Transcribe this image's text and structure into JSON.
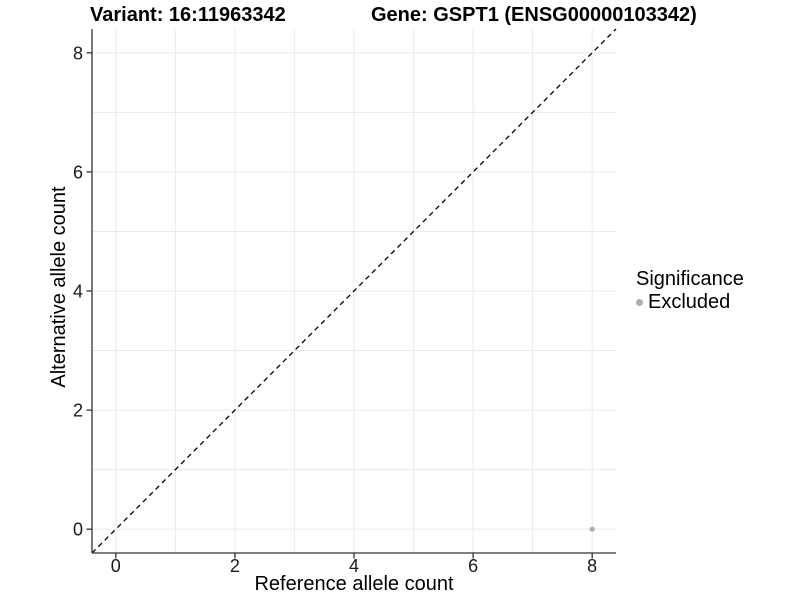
{
  "chart_data": {
    "type": "scatter",
    "title_left": "Variant: 16:11963342",
    "title_right": "Gene: GSPT1 (ENSG00000103342)",
    "xlabel": "Reference allele count",
    "ylabel": "Alternative allele count",
    "xlim": [
      -0.4,
      8.4
    ],
    "ylim": [
      -0.4,
      8.4
    ],
    "xticks": [
      0,
      2,
      4,
      6,
      8
    ],
    "yticks": [
      0,
      2,
      4,
      6,
      8
    ],
    "grid": "on",
    "gridline_step": 1,
    "identity_line": {
      "style": "dashed",
      "from": [
        -0.4,
        -0.4
      ],
      "to": [
        8.4,
        8.4
      ],
      "color": "#000000"
    },
    "series": [
      {
        "name": "Excluded",
        "color": "#adadad",
        "points": [
          [
            8,
            0
          ]
        ]
      }
    ],
    "legend": {
      "title": "Significance",
      "position": "right-center",
      "entries": [
        {
          "label": "Excluded",
          "color": "#adadad",
          "marker": "circle"
        }
      ]
    },
    "panel": {
      "background": "#ffffff",
      "grid_color": "#ebebeb",
      "axis_color": "#333333",
      "tick_label_color": "#1a1a1a"
    }
  }
}
